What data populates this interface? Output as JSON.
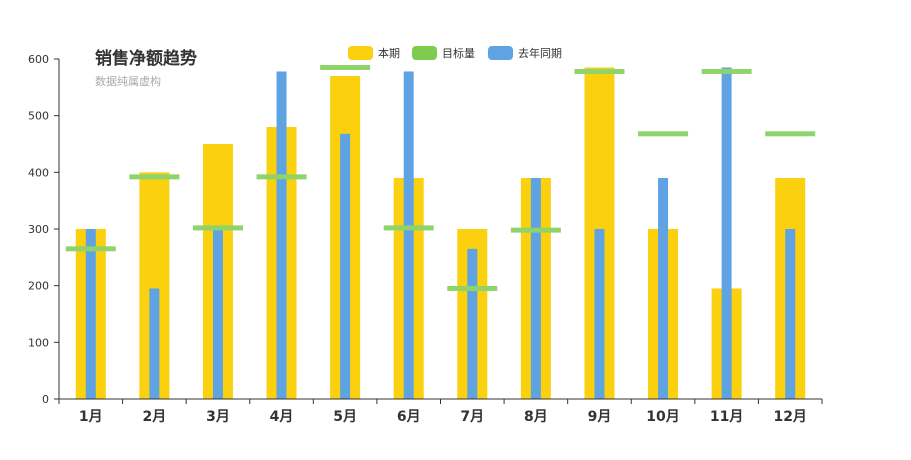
{
  "chart_data": {
    "type": "bar",
    "title": "销售净额趋势",
    "subtitle": "数据纯属虚构",
    "categories": [
      "1月",
      "2月",
      "3月",
      "4月",
      "5月",
      "6月",
      "7月",
      "8月",
      "9月",
      "10月",
      "11月",
      "12月"
    ],
    "ylim": [
      0,
      600
    ],
    "yticks": [
      0,
      100,
      200,
      300,
      400,
      500,
      600
    ],
    "legend_position": "top-center",
    "grid": false,
    "series": [
      {
        "name": "本期",
        "kind": "bar-wide",
        "color": "#fad00f",
        "values": [
          300,
          400,
          450,
          480,
          570,
          390,
          300,
          390,
          585,
          300,
          195,
          390
        ]
      },
      {
        "name": "去年同期",
        "kind": "bar-narrow",
        "color": "#5fa3e3",
        "values": [
          300,
          195,
          300,
          578,
          468,
          578,
          265,
          390,
          300,
          390,
          585,
          300
        ]
      },
      {
        "name": "目标量",
        "kind": "marker",
        "color": "#8fd36b",
        "values": [
          265,
          392,
          302,
          392,
          585,
          302,
          195,
          298,
          578,
          468,
          578,
          468
        ]
      }
    ],
    "legend": [
      {
        "name": "本期",
        "color": "#fad00f"
      },
      {
        "name": "目标量",
        "color": "#7dcb4f"
      },
      {
        "name": "去年同期",
        "color": "#5fa3e3"
      }
    ]
  }
}
